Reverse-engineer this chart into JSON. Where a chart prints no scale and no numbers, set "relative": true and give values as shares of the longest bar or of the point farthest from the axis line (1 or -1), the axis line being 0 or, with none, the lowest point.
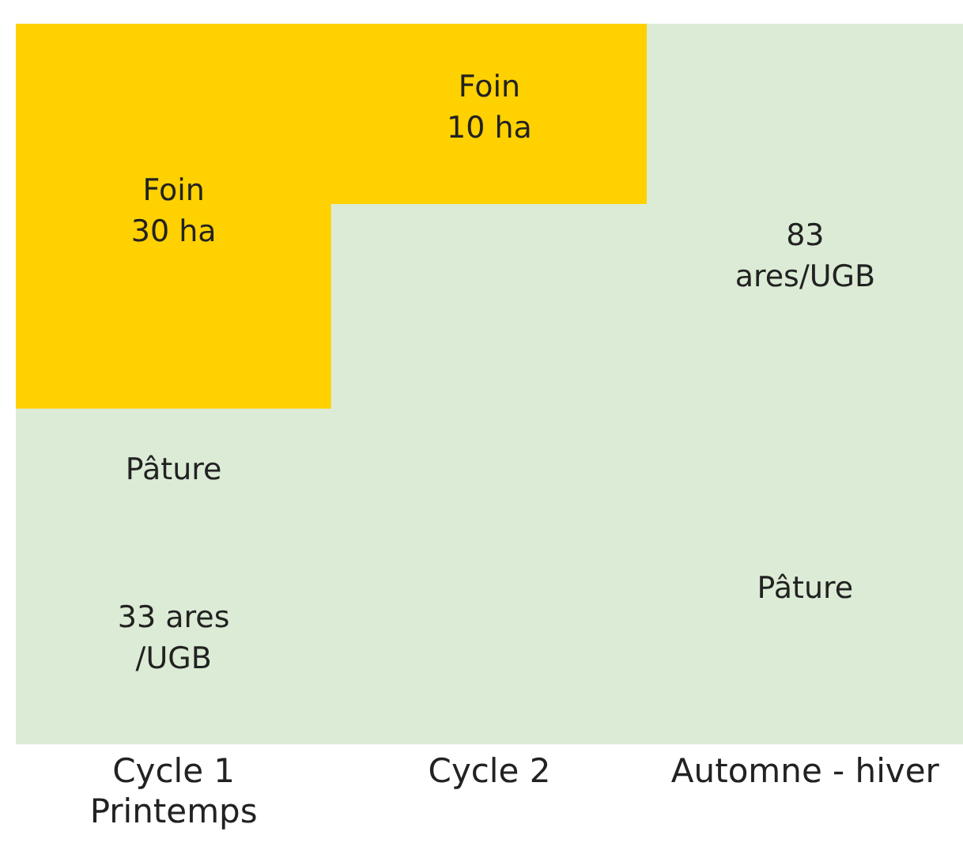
{
  "chart_data": {
    "type": "bar",
    "relative": true,
    "stacked": true,
    "legend": false,
    "grid": false,
    "categories": [
      "Cycle 1\nPrintemps",
      "Cycle 2",
      "Automne - hiver"
    ],
    "series": [
      {
        "color": "#dcebd5",
        "values": [
          0.465,
          0.749,
          1
        ]
      },
      {
        "color": "#ffd100",
        "values": [
          0.535,
          0.251,
          0
        ]
      }
    ],
    "annotations": [
      "Foin\n30 ha",
      "Pâture",
      "33 ares\n/UGB",
      "Foin\n10 ha",
      "83\nares/UGB",
      "Pâture"
    ]
  }
}
